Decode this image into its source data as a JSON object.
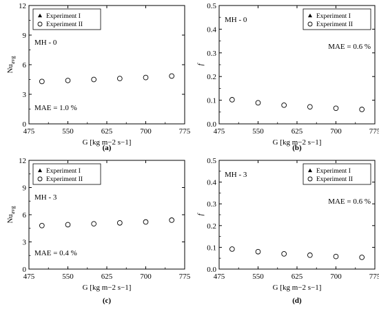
{
  "chart_data": [
    {
      "type": "scatter",
      "panel_label": "(a)",
      "xlabel": "G [kg m−2 s−1]",
      "ylabel": "Nuavg",
      "xlim": [
        475,
        775
      ],
      "ylim": [
        0,
        12
      ],
      "xticks": [
        "475",
        "550",
        "625",
        "700",
        "775"
      ],
      "yticks": [
        "0",
        "3",
        "6",
        "9",
        "12"
      ],
      "case_label": "MH - 0",
      "mae_label": "MAE = 1.0 %",
      "legend_position": "top-left",
      "series": [
        {
          "name": "Experiment I",
          "marker": "filled-triangle",
          "x": [
            500,
            550,
            600,
            650,
            700,
            750
          ],
          "y": [
            4.3,
            4.4,
            4.5,
            4.6,
            4.7,
            4.85
          ]
        },
        {
          "name": "Experiment II",
          "marker": "open-circle",
          "x": [
            500,
            550,
            600,
            650,
            700,
            750
          ],
          "y": [
            4.3,
            4.4,
            4.5,
            4.6,
            4.7,
            4.85
          ]
        }
      ]
    },
    {
      "type": "scatter",
      "panel_label": "(b)",
      "xlabel": "G [kg m−2 s−1]",
      "ylabel": "f",
      "xlim": [
        475,
        775
      ],
      "ylim": [
        0,
        0.5
      ],
      "xticks": [
        "475",
        "550",
        "625",
        "700",
        "775"
      ],
      "yticks": [
        "0.0",
        "0.1",
        "0.2",
        "0.3",
        "0.4",
        "0.5"
      ],
      "case_label": "MH - 0",
      "mae_label": "MAE = 0.6 %",
      "legend_position": "top-right",
      "series": [
        {
          "name": "Experiment I",
          "marker": "filled-triangle",
          "x": [
            500,
            550,
            600,
            650,
            700,
            750
          ],
          "y": [
            0.102,
            0.089,
            0.079,
            0.072,
            0.066,
            0.061
          ]
        },
        {
          "name": "Experiment II",
          "marker": "open-circle",
          "x": [
            500,
            550,
            600,
            650,
            700,
            750
          ],
          "y": [
            0.102,
            0.089,
            0.079,
            0.072,
            0.066,
            0.061
          ]
        }
      ]
    },
    {
      "type": "scatter",
      "panel_label": "(c)",
      "xlabel": "G [kg m−2 s−1]",
      "ylabel": "Nuavg",
      "xlim": [
        475,
        775
      ],
      "ylim": [
        0,
        12
      ],
      "xticks": [
        "475",
        "550",
        "625",
        "700",
        "775"
      ],
      "yticks": [
        "0",
        "3",
        "6",
        "9",
        "12"
      ],
      "case_label": "MH - 3",
      "mae_label": "MAE = 0.4 %",
      "legend_position": "top-left",
      "series": [
        {
          "name": "Experiment I",
          "marker": "filled-triangle",
          "x": [
            500,
            550,
            600,
            650,
            700,
            750
          ],
          "y": [
            4.8,
            4.9,
            5.0,
            5.1,
            5.2,
            5.4
          ]
        },
        {
          "name": "Experiment II",
          "marker": "open-circle",
          "x": [
            500,
            550,
            600,
            650,
            700,
            750
          ],
          "y": [
            4.8,
            4.9,
            5.0,
            5.1,
            5.2,
            5.4
          ]
        }
      ]
    },
    {
      "type": "scatter",
      "panel_label": "(d)",
      "xlabel": "G [kg m−2 s−1]",
      "ylabel": "f",
      "xlim": [
        475,
        775
      ],
      "ylim": [
        0,
        0.5
      ],
      "xticks": [
        "475",
        "550",
        "625",
        "700",
        "775"
      ],
      "yticks": [
        "0.0",
        "0.1",
        "0.2",
        "0.3",
        "0.4",
        "0.5"
      ],
      "case_label": "MH - 3",
      "mae_label": "MAE = 0.6 %",
      "legend_position": "top-right",
      "series": [
        {
          "name": "Experiment I",
          "marker": "filled-triangle",
          "x": [
            500,
            550,
            600,
            650,
            700,
            750
          ],
          "y": [
            0.092,
            0.08,
            0.07,
            0.064,
            0.058,
            0.054
          ]
        },
        {
          "name": "Experiment II",
          "marker": "open-circle",
          "x": [
            500,
            550,
            600,
            650,
            700,
            750
          ],
          "y": [
            0.092,
            0.08,
            0.07,
            0.064,
            0.058,
            0.054
          ]
        }
      ]
    }
  ]
}
